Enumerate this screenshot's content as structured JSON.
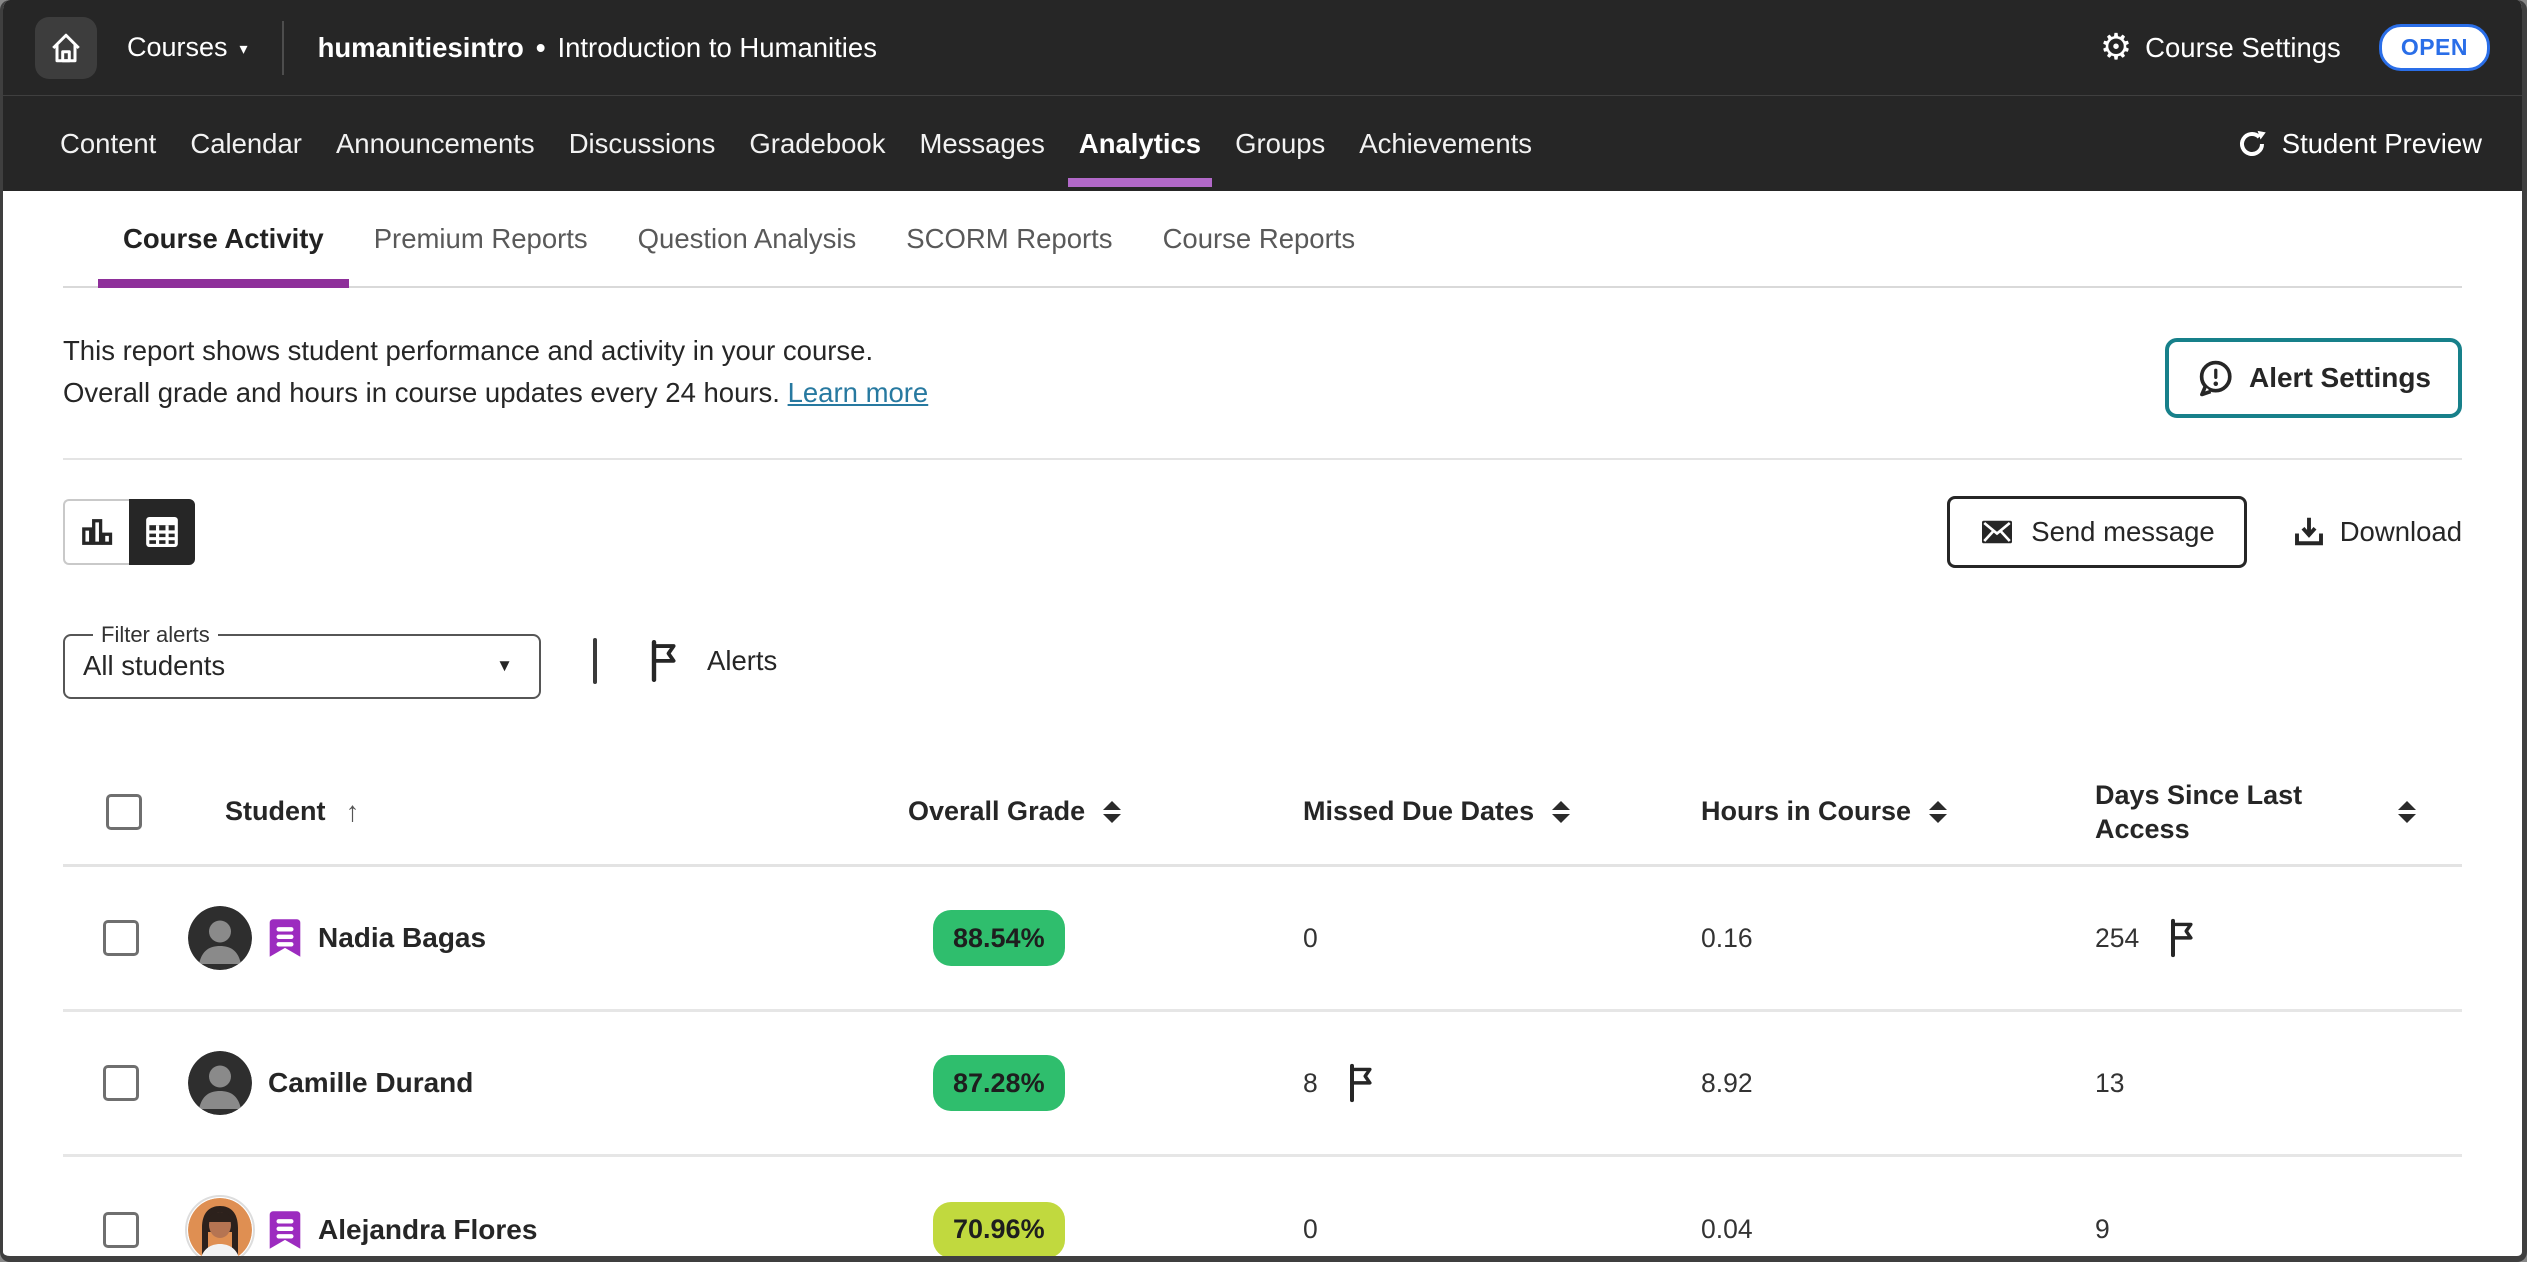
{
  "topbar": {
    "courses_label": "Courses",
    "course_id": "humanitiesintro",
    "separator": "•",
    "course_title": "Introduction to Humanities",
    "settings_label": "Course Settings",
    "open_badge": "OPEN"
  },
  "nav": {
    "tabs": [
      {
        "label": "Content",
        "active": false
      },
      {
        "label": "Calendar",
        "active": false
      },
      {
        "label": "Announcements",
        "active": false
      },
      {
        "label": "Discussions",
        "active": false
      },
      {
        "label": "Gradebook",
        "active": false
      },
      {
        "label": "Messages",
        "active": false
      },
      {
        "label": "Analytics",
        "active": true
      },
      {
        "label": "Groups",
        "active": false
      },
      {
        "label": "Achievements",
        "active": false
      }
    ],
    "student_preview": "Student Preview"
  },
  "subtabs": [
    {
      "label": "Course Activity",
      "active": true
    },
    {
      "label": "Premium Reports",
      "active": false
    },
    {
      "label": "Question Analysis",
      "active": false
    },
    {
      "label": "SCORM Reports",
      "active": false
    },
    {
      "label": "Course Reports",
      "active": false
    }
  ],
  "report": {
    "line1": "This report shows student performance and activity in your course.",
    "line2": "Overall grade and hours in course updates every 24 hours.",
    "learn_more": "Learn more",
    "alert_settings": "Alert Settings"
  },
  "toolbar": {
    "send_message": "Send message",
    "download": "Download"
  },
  "filter": {
    "legend": "Filter alerts",
    "value": "All students",
    "alerts_label": "Alerts"
  },
  "glyphs": {
    "caret_down_small": "▾",
    "caret_down_select": "▼",
    "sort_ascending_arrow": "↑",
    "gear": "⚙"
  },
  "table": {
    "columns": [
      "Student",
      "Overall Grade",
      "Missed Due Dates",
      "Hours in Course",
      "Days Since Last Access"
    ],
    "rows": [
      {
        "name": "Nadia Bagas",
        "accommodations": true,
        "avatar": "silhouette",
        "grade": "88.54%",
        "grade_color": "green",
        "missed": "0",
        "missed_flag": false,
        "hours": "0.16",
        "days": "254",
        "days_flag": true
      },
      {
        "name": "Camille Durand",
        "accommodations": false,
        "avatar": "silhouette",
        "grade": "87.28%",
        "grade_color": "green",
        "missed": "8",
        "missed_flag": true,
        "hours": "8.92",
        "days": "13",
        "days_flag": false
      },
      {
        "name": "Alejandra Flores",
        "accommodations": true,
        "avatar": "photo",
        "grade": "70.96%",
        "grade_color": "lime",
        "missed": "0",
        "missed_flag": false,
        "hours": "0.04",
        "days": "9",
        "days_flag": false
      }
    ]
  },
  "colors": {
    "nav_underline": "#b269c9",
    "subtab_underline": "#8e2f9a",
    "teal_accent": "#17808a",
    "link": "#2779a0",
    "open_badge_blue": "#2a6ee8",
    "header_dark": "#262626",
    "badge": {
      "green": "#2fbe6d",
      "lime": "#c1d93e"
    }
  }
}
